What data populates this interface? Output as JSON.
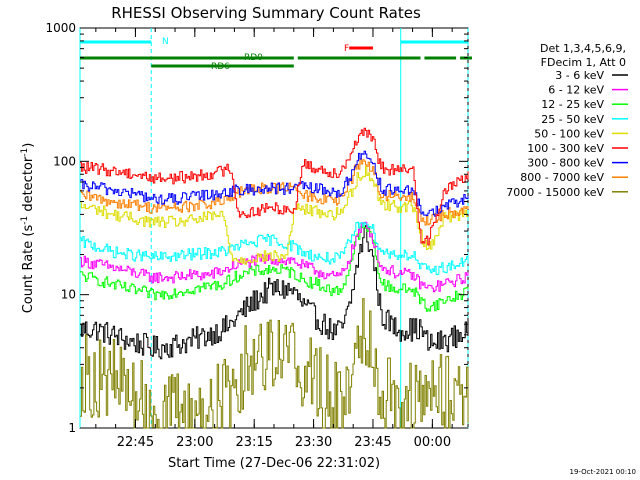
{
  "chart_data": {
    "type": "line",
    "title": "RHESSI Observing Summary Count Rates",
    "xlabel": "Start Time (27-Dec-06 22:31:02)",
    "ylabel": "Count Rate (s",
    "ylabel_sup1": "-1",
    "ylabel_mid": " detector",
    "ylabel_sup2": "-1",
    "ylabel_end": ")",
    "timestamp": "19-Oct-2021 00:10",
    "y_scale": "log",
    "ylim": [
      1,
      1000
    ],
    "y_ticks": [
      {
        "value": 1,
        "label": "1"
      },
      {
        "value": 10,
        "label": "10"
      },
      {
        "value": 100,
        "label": "100"
      },
      {
        "value": 1000,
        "label": "1000"
      }
    ],
    "xlim": [
      "22:31",
      "00:09"
    ],
    "x_ticks": [
      {
        "label": "22:45",
        "minute": 14
      },
      {
        "label": "23:00",
        "minute": 29
      },
      {
        "label": "23:15",
        "minute": 44
      },
      {
        "label": "23:30",
        "minute": 59
      },
      {
        "label": "23:45",
        "minute": 74
      },
      {
        "label": "00:00",
        "minute": 89
      }
    ],
    "legend": {
      "placement": "right",
      "header": [
        "Det 1,3,4,5,6,9,",
        "FDecim 1, Att 0"
      ],
      "entries": [
        {
          "label": "3 - 6 keV",
          "color": "#000000"
        },
        {
          "label": "6 - 12 keV",
          "color": "#ff00ff"
        },
        {
          "label": "12 - 25 keV",
          "color": "#00ff00"
        },
        {
          "label": "25 - 50 keV",
          "color": "#00ffff"
        },
        {
          "label": "50 - 100 keV",
          "color": "#dddd00"
        },
        {
          "label": "100 - 300 keV",
          "color": "#ff0000"
        },
        {
          "label": "300 - 800 keV",
          "color": "#0000ff"
        },
        {
          "label": "800 - 7000 keV",
          "color": "#ff8000"
        },
        {
          "label": "7000 - 15000 keV",
          "color": "#808000"
        }
      ]
    },
    "flags": [
      {
        "label": "N",
        "color": "#00ffff",
        "segments": [
          [
            0,
            18
          ],
          [
            81,
            98
          ]
        ]
      },
      {
        "label": "F",
        "color": "#ff0000",
        "segments": [
          [
            68,
            74
          ]
        ]
      },
      {
        "label": "RD0",
        "color": "#008000",
        "segments": [
          [
            0,
            54
          ],
          [
            55,
            86
          ],
          [
            87,
            95
          ],
          [
            96,
            99
          ]
        ]
      },
      {
        "label": "RD6",
        "color": "#008000",
        "segments": [
          [
            18,
            54
          ]
        ]
      }
    ],
    "vlines": [
      {
        "minute": 0,
        "style": "solid",
        "color": "#00ffff"
      },
      {
        "minute": 18,
        "style": "dashed",
        "color": "#00ffff"
      },
      {
        "minute": 81,
        "style": "solid",
        "color": "#00ffff"
      },
      {
        "minute": 98,
        "style": "dashed",
        "color": "#00ffff"
      }
    ],
    "x": [
      0,
      4,
      8,
      12,
      16,
      18,
      20,
      24,
      28,
      32,
      36,
      38,
      40,
      44,
      48,
      52,
      54,
      56,
      60,
      64,
      66,
      68,
      70,
      72,
      74,
      76,
      80,
      84,
      86,
      88,
      92,
      96,
      98
    ],
    "series": [
      {
        "name": "3 - 6 keV",
        "color": "#000000",
        "values": [
          5.5,
          5.5,
          5.0,
          4.5,
          4.2,
          4.0,
          4.0,
          4.2,
          4.5,
          5,
          5.5,
          6.0,
          7,
          9,
          11,
          11,
          10.5,
          8.5,
          6.5,
          5.2,
          5.5,
          8,
          18,
          30,
          18,
          7,
          5.5,
          5.5,
          5.5,
          4.2,
          4.5,
          5,
          5.5
        ]
      },
      {
        "name": "6 - 12 keV",
        "color": "#ff00ff",
        "values": [
          18,
          17,
          16,
          15,
          14,
          13.5,
          13.5,
          13.5,
          14.0,
          14,
          15,
          16.0,
          17,
          18,
          18.5,
          18,
          18.0,
          16.5,
          15,
          13.5,
          14,
          19,
          28,
          35,
          26,
          16,
          14.5,
          14,
          12,
          11,
          12,
          13,
          14
        ]
      },
      {
        "name": "12 - 25 keV",
        "color": "#00ff00",
        "values": [
          14,
          13,
          12,
          11,
          10.5,
          10,
          10.0,
          10.5,
          11,
          11.5,
          12,
          13,
          14,
          15,
          15.5,
          15,
          14.5,
          13,
          12,
          10.5,
          11,
          16,
          28,
          33,
          25,
          12,
          11.0,
          11,
          9,
          8,
          9,
          10,
          11
        ]
      },
      {
        "name": "25 - 50 keV",
        "color": "#00ffff",
        "values": [
          25,
          23,
          21,
          20,
          19.5,
          19,
          19.0,
          19.5,
          20,
          20.5,
          21,
          22,
          23,
          25,
          26,
          24,
          23.0,
          21,
          19,
          18.5,
          19,
          25,
          33,
          37,
          30,
          21,
          20.0,
          20,
          16,
          15,
          16,
          17,
          18
        ]
      },
      {
        "name": "50 - 100 keV",
        "color": "#dddd00",
        "values": [
          46,
          44,
          40,
          38,
          36,
          35,
          35.0,
          35,
          36,
          38,
          40,
          20,
          18,
          19,
          19.5,
          19,
          44.0,
          44,
          42,
          40,
          42,
          55,
          75,
          85,
          72,
          48,
          46.0,
          46,
          28,
          22,
          38,
          40,
          43
        ]
      },
      {
        "name": "100 - 300 keV",
        "color": "#ff0000",
        "values": [
          90,
          88,
          85,
          82,
          78,
          75,
          75.0,
          75,
          77,
          80,
          85,
          90,
          40,
          42,
          45,
          44,
          42.0,
          95,
          88,
          82,
          86,
          110,
          150,
          165,
          140,
          90,
          85.0,
          85,
          27,
          26,
          60,
          72,
          80
        ]
      },
      {
        "name": "300 - 800 keV",
        "color": "#0000ff",
        "values": [
          66,
          64,
          61,
          58,
          55,
          52,
          52.0,
          52,
          54,
          56,
          58,
          60,
          60,
          62,
          63,
          62,
          61.0,
          65,
          62,
          58,
          60,
          75,
          105,
          115,
          98,
          62,
          60.0,
          59,
          44,
          40,
          46,
          50,
          55
        ]
      },
      {
        "name": "800 - 7000 keV",
        "color": "#ff8000",
        "values": [
          55,
          53,
          50,
          48,
          46,
          45,
          45.0,
          45,
          46,
          48,
          50,
          52,
          58,
          62,
          64,
          63,
          62.0,
          56,
          53,
          50,
          52,
          68,
          95,
          100,
          85,
          56,
          54.0,
          53,
          38,
          36,
          40,
          43,
          46
        ]
      },
      {
        "name": "7000 - 15000 keV",
        "color": "#808000",
        "values": [
          2.5,
          2.4,
          2.3,
          2.0,
          1.5,
          1.4,
          1.3,
          1.3,
          1.3,
          1.4,
          1.6,
          2.0,
          2.5,
          3.5,
          4.2,
          3.8,
          3.5,
          2.8,
          2.2,
          1.5,
          1.6,
          2.5,
          4.5,
          6,
          4,
          2.0,
          1.6,
          1.6,
          1.6,
          1.7,
          1.8,
          1.9,
          2.2
        ]
      }
    ]
  }
}
